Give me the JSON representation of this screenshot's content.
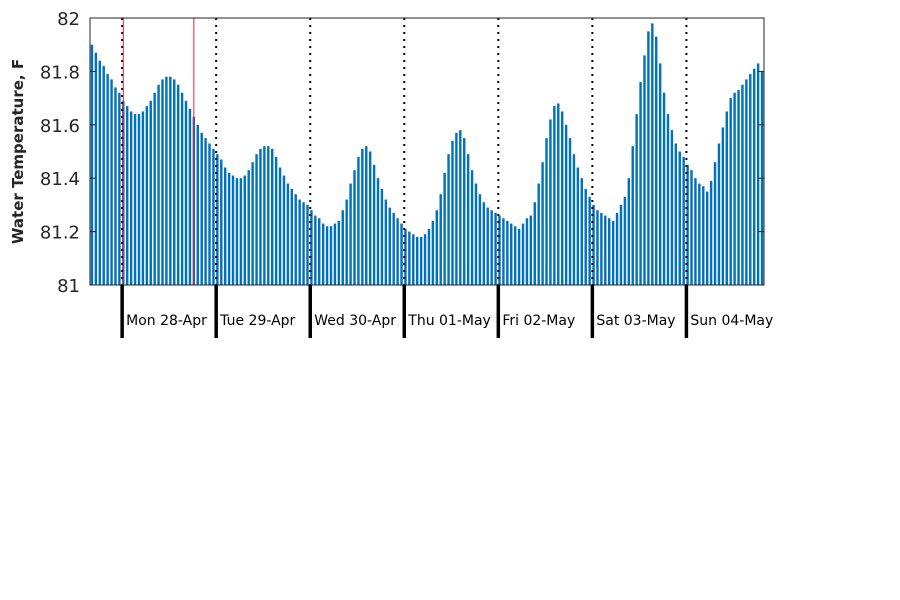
{
  "chart_data": {
    "type": "bar",
    "title": "",
    "xlabel": "",
    "ylabel": "Water Temperature, F",
    "ylim": [
      81,
      82
    ],
    "yticks": [
      "81",
      "81.2",
      "81.4",
      "81.6",
      "81.8",
      "82"
    ],
    "days": [
      "Mon 28-Apr",
      "Tue 29-Apr",
      "Wed 30-Apr",
      "Thu 01-May",
      "Fri 02-May",
      "Sat 03-May",
      "Sun 04-May"
    ],
    "bar_interval_hours": 1,
    "series": [
      {
        "color": "#0072BD",
        "values": [
          81.9,
          81.87,
          81.84,
          81.82,
          81.79,
          81.77,
          81.74,
          81.72,
          81.69,
          81.67,
          81.65,
          81.64,
          81.64,
          81.65,
          81.67,
          81.69,
          81.72,
          81.75,
          81.77,
          81.78,
          81.78,
          81.77,
          81.75,
          81.72,
          81.69,
          81.66,
          81.63,
          81.6,
          81.57,
          81.55,
          81.53,
          81.51,
          81.49,
          81.47,
          81.44,
          81.42,
          81.41,
          81.4,
          81.4,
          81.41,
          81.43,
          81.46,
          81.49,
          81.51,
          81.52,
          81.52,
          81.51,
          81.48,
          81.44,
          81.41,
          81.38,
          81.36,
          81.34,
          81.32,
          81.31,
          81.3,
          81.28,
          81.26,
          81.25,
          81.23,
          81.22,
          81.22,
          81.23,
          81.24,
          81.28,
          81.32,
          81.38,
          81.43,
          81.48,
          81.51,
          81.52,
          81.5,
          81.45,
          81.4,
          81.36,
          81.32,
          81.29,
          81.27,
          81.25,
          81.23,
          81.21,
          81.2,
          81.19,
          81.18,
          81.18,
          81.19,
          81.21,
          81.24,
          81.28,
          81.34,
          81.42,
          81.49,
          81.54,
          81.57,
          81.58,
          81.55,
          81.49,
          81.43,
          81.38,
          81.34,
          81.31,
          81.29,
          81.28,
          81.27,
          81.26,
          81.25,
          81.24,
          81.23,
          81.22,
          81.21,
          81.23,
          81.25,
          81.26,
          81.31,
          81.38,
          81.46,
          81.55,
          81.62,
          81.67,
          81.68,
          81.65,
          81.6,
          81.55,
          81.49,
          81.44,
          81.4,
          81.36,
          81.33,
          81.3,
          81.28,
          81.27,
          81.26,
          81.25,
          81.24,
          81.27,
          81.3,
          81.33,
          81.4,
          81.52,
          81.64,
          81.76,
          81.86,
          81.95,
          81.98,
          81.93,
          81.83,
          81.72,
          81.64,
          81.58,
          81.53,
          81.5,
          81.48,
          81.45,
          81.43,
          81.4,
          81.38,
          81.37,
          81.35,
          81.39,
          81.46,
          81.53,
          81.59,
          81.65,
          81.7,
          81.72,
          81.73,
          81.75,
          81.77,
          81.79,
          81.81,
          81.83,
          81.8
        ],
        "markers": [
          8.5,
          26.5
        ]
      }
    ],
    "grid": false
  }
}
